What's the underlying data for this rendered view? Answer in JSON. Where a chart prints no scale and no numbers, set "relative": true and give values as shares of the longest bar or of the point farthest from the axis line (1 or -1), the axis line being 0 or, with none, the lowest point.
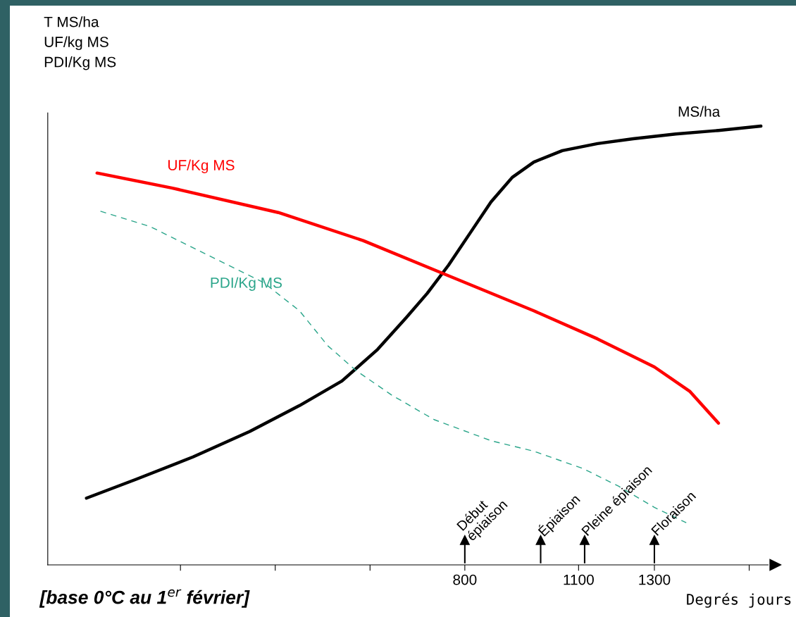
{
  "chart_data": {
    "type": "line",
    "relative": true,
    "ylabel": "T MS/ha\nUF/kg MS\nPDI/Kg MS",
    "xlabel": "Degrés jours",
    "xlim": [
      -300,
      1600
    ],
    "xticks": [
      {
        "value": 50,
        "label": null
      },
      {
        "value": 300,
        "label": null
      },
      {
        "value": 550,
        "label": null
      },
      800,
      1100,
      1300,
      {
        "value": 1550,
        "label": null
      }
    ],
    "series": [
      {
        "name": "MS/ha",
        "color": "#000000",
        "line_style": "solid",
        "x": [
          -198,
          -67,
          83,
          233,
          364,
          476,
          570,
          645,
          701,
          757,
          813,
          869,
          925,
          982,
          1057,
          1150,
          1244,
          1356,
          1469,
          1581
        ],
        "values": [
          0.152,
          0.195,
          0.246,
          0.304,
          0.363,
          0.419,
          0.491,
          0.563,
          0.619,
          0.683,
          0.755,
          0.827,
          0.883,
          0.918,
          0.944,
          0.96,
          0.971,
          0.982,
          0.99,
          1
        ]
      },
      {
        "name": "UF/Kg MS",
        "color": "#ff0000",
        "line_style": "solid",
        "x": [
          -170,
          27,
          308,
          532,
          757,
          982,
          1150,
          1300,
          1394,
          1469
        ],
        "values": [
          0.893,
          0.859,
          0.803,
          0.739,
          0.659,
          0.579,
          0.515,
          0.451,
          0.395,
          0.323
        ]
      },
      {
        "name": "PDI/Kg MS",
        "color": "#2aa58a",
        "line_style": "dashed",
        "x": [
          -161,
          -30,
          120,
          270,
          364,
          439,
          513,
          607,
          719,
          869,
          982,
          1113,
          1206,
          1300,
          1384
        ],
        "values": [
          0.806,
          0.771,
          0.707,
          0.643,
          0.579,
          0.499,
          0.443,
          0.387,
          0.331,
          0.283,
          0.259,
          0.219,
          0.179,
          0.131,
          0.096
        ]
      }
    ],
    "ref_lines": [
      {
        "axis": "x",
        "value": 800,
        "label": "Début\népiaison"
      },
      {
        "axis": "x",
        "value": 1000,
        "label": "Épiaison"
      },
      {
        "axis": "x",
        "value": 1116,
        "label": "Pleine épiaison"
      },
      {
        "axis": "x",
        "value": 1300,
        "label": "Floraison"
      }
    ],
    "annotations": [
      "[base 0°C au 1$^{er}$ février]"
    ]
  }
}
